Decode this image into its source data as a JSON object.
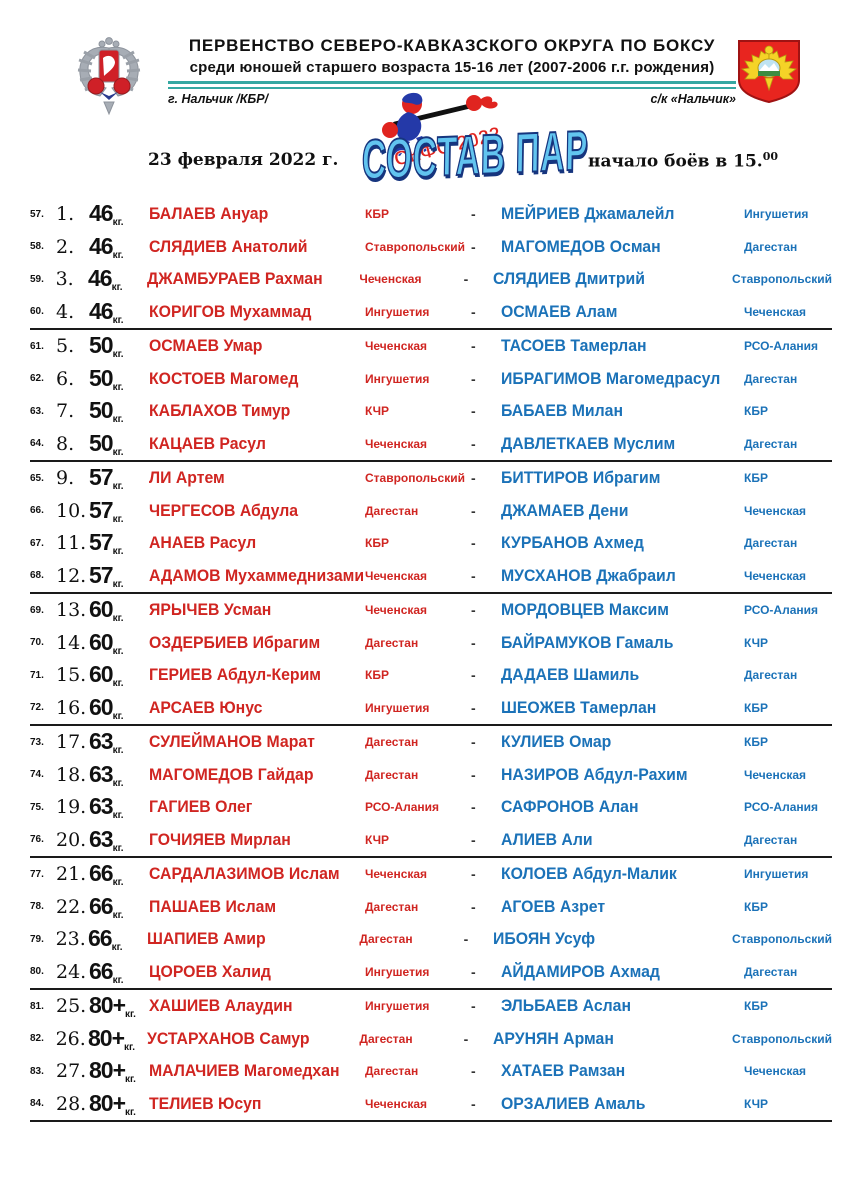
{
  "header": {
    "title": "ПЕРВЕНСТВО СЕВЕРО-КАВКАЗСКОГО ОКРУГА ПО БОКСУ",
    "subtitle": "среди юношей старшего возраста 15-16 лет (2007-2006 г.г. рождения)",
    "location_left": "г. Нальчик /КБР/",
    "location_right": "с/к «Нальчик»",
    "logo_text": "СКФО 2022"
  },
  "infobar": {
    "date": "23 февраля 2022 г.",
    "main_title": "СОСТАВ ПАР",
    "start_time": "начало боёв в 15.",
    "start_time_sup": "00"
  },
  "colors": {
    "red": "#d02521",
    "blue": "#1b72b8",
    "teal": "#35a8a2",
    "title-fill": "#62c4ef",
    "title-outline": "#16357e"
  },
  "table": {
    "weight_unit": "кг.",
    "dash": "-",
    "rows": [
      {
        "seq": "57.",
        "num": "1.",
        "weight": "46",
        "red_name": "БАЛАЕВ Ануар",
        "red_region": "КБР",
        "blue_name": "МЕЙРИЕВ Джамалейл",
        "blue_region": "Ингушетия",
        "group_end": false
      },
      {
        "seq": "58.",
        "num": "2.",
        "weight": "46",
        "red_name": "СЛЯДИЕВ Анатолий",
        "red_region": "Ставропольский",
        "blue_name": "МАГОМЕДОВ Осман",
        "blue_region": "Дагестан",
        "group_end": false
      },
      {
        "seq": "59.",
        "num": "3.",
        "weight": "46",
        "red_name": "ДЖАМБУРАЕВ Рахман",
        "red_region": "Чеченская",
        "blue_name": "СЛЯДИЕВ Дмитрий",
        "blue_region": "Ставропольский",
        "group_end": false
      },
      {
        "seq": "60.",
        "num": "4.",
        "weight": "46",
        "red_name": "КОРИГОВ Мухаммад",
        "red_region": "Ингушетия",
        "blue_name": "ОСМАЕВ Алам",
        "blue_region": "Чеченская",
        "group_end": true
      },
      {
        "seq": "61.",
        "num": "5.",
        "weight": "50",
        "red_name": "ОСМАЕВ Умар",
        "red_region": "Чеченская",
        "blue_name": "ТАСОЕВ Тамерлан",
        "blue_region": "РСО-Алания",
        "group_end": false
      },
      {
        "seq": "62.",
        "num": "6.",
        "weight": "50",
        "red_name": "КОСТОЕВ Магомед",
        "red_region": "Ингушетия",
        "blue_name": "ИБРАГИМОВ Магомедрасул",
        "blue_region": "Дагестан",
        "group_end": false
      },
      {
        "seq": "63.",
        "num": "7.",
        "weight": "50",
        "red_name": "КАБЛАХОВ Тимур",
        "red_region": "КЧР",
        "blue_name": "БАБАЕВ Милан",
        "blue_region": "КБР",
        "group_end": false
      },
      {
        "seq": "64.",
        "num": "8.",
        "weight": "50",
        "red_name": "КАЦАЕВ Расул",
        "red_region": "Чеченская",
        "blue_name": "ДАВЛЕТКАЕВ Муслим",
        "blue_region": "Дагестан",
        "group_end": true
      },
      {
        "seq": "65.",
        "num": "9.",
        "weight": "57",
        "red_name": "ЛИ Артем",
        "red_region": "Ставропольский",
        "blue_name": "БИТТИРОВ Ибрагим",
        "blue_region": "КБР",
        "group_end": false
      },
      {
        "seq": "66.",
        "num": "10.",
        "weight": "57",
        "red_name": "ЧЕРГЕСОВ Абдула",
        "red_region": "Дагестан",
        "blue_name": "ДЖАМАЕВ Дени",
        "blue_region": "Чеченская",
        "group_end": false
      },
      {
        "seq": "67.",
        "num": "11.",
        "weight": "57",
        "red_name": "АНАЕВ Расул",
        "red_region": "КБР",
        "blue_name": "КУРБАНОВ Ахмед",
        "blue_region": "Дагестан",
        "group_end": false
      },
      {
        "seq": "68.",
        "num": "12.",
        "weight": "57",
        "red_name": "АДАМОВ Мухаммеднизами",
        "red_region": "Чеченская",
        "blue_name": "МУСХАНОВ Джабраил",
        "blue_region": "Чеченская",
        "group_end": true
      },
      {
        "seq": "69.",
        "num": "13.",
        "weight": "60",
        "red_name": "ЯРЫЧЕВ Усман",
        "red_region": "Чеченская",
        "blue_name": "МОРДОВЦЕВ Максим",
        "blue_region": "РСО-Алания",
        "group_end": false
      },
      {
        "seq": "70.",
        "num": "14.",
        "weight": "60",
        "red_name": "ОЗДЕРБИЕВ Ибрагим",
        "red_region": "Дагестан",
        "blue_name": "БАЙРАМУКОВ Гамаль",
        "blue_region": "КЧР",
        "group_end": false
      },
      {
        "seq": "71.",
        "num": "15.",
        "weight": "60",
        "red_name": "ГЕРИЕВ Абдул-Керим",
        "red_region": "КБР",
        "blue_name": "ДАДАЕВ Шамиль",
        "blue_region": "Дагестан",
        "group_end": false
      },
      {
        "seq": "72.",
        "num": "16.",
        "weight": "60",
        "red_name": "АРСАЕВ Юнус",
        "red_region": "Ингушетия",
        "blue_name": "ШЕОЖЕВ Тамерлан",
        "blue_region": "КБР",
        "group_end": true
      },
      {
        "seq": "73.",
        "num": "17.",
        "weight": "63",
        "red_name": "СУЛЕЙМАНОВ Марат",
        "red_region": "Дагестан",
        "blue_name": "КУЛИЕВ Омар",
        "blue_region": "КБР",
        "group_end": false
      },
      {
        "seq": "74.",
        "num": "18.",
        "weight": "63",
        "red_name": "МАГОМЕДОВ Гайдар",
        "red_region": "Дагестан",
        "blue_name": "НАЗИРОВ Абдул-Рахим",
        "blue_region": "Чеченская",
        "group_end": false
      },
      {
        "seq": "75.",
        "num": "19.",
        "weight": "63",
        "red_name": "ГАГИЕВ Олег",
        "red_region": "РСО-Алания",
        "blue_name": "САФРОНОВ Алан",
        "blue_region": "РСО-Алания",
        "group_end": false
      },
      {
        "seq": "76.",
        "num": "20.",
        "weight": "63",
        "red_name": "ГОЧИЯЕВ Мирлан",
        "red_region": "КЧР",
        "blue_name": "АЛИЕВ Али",
        "blue_region": "Дагестан",
        "group_end": true
      },
      {
        "seq": "77.",
        "num": "21.",
        "weight": "66",
        "red_name": "САРДАЛАЗИМОВ Ислам",
        "red_region": "Чеченская",
        "blue_name": "КОЛОЕВ Абдул-Малик",
        "blue_region": "Ингушетия",
        "group_end": false
      },
      {
        "seq": "78.",
        "num": "22.",
        "weight": "66",
        "red_name": "ПАШАЕВ Ислам",
        "red_region": "Дагестан",
        "blue_name": "АГОЕВ Азрет",
        "blue_region": "КБР",
        "group_end": false
      },
      {
        "seq": "79.",
        "num": "23.",
        "weight": "66",
        "red_name": "ШАПИЕВ Амир",
        "red_region": "Дагестан",
        "blue_name": "ИБОЯН Усуф",
        "blue_region": "Ставропольский",
        "group_end": false
      },
      {
        "seq": "80.",
        "num": "24.",
        "weight": "66",
        "red_name": "ЦОРОЕВ Халид",
        "red_region": "Ингушетия",
        "blue_name": "АЙДАМИРОВ Ахмад",
        "blue_region": "Дагестан",
        "group_end": true
      },
      {
        "seq": "81.",
        "num": "25.",
        "weight": "80+",
        "red_name": "ХАШИЕВ Алаудин",
        "red_region": "Ингушетия",
        "blue_name": "ЭЛЬБАЕВ Аслан",
        "blue_region": "КБР",
        "group_end": false
      },
      {
        "seq": "82.",
        "num": "26.",
        "weight": "80+",
        "red_name": "УСТАРХАНОВ Самур",
        "red_region": "Дагестан",
        "blue_name": "АРУНЯН Арман",
        "blue_region": "Ставропольский",
        "group_end": false
      },
      {
        "seq": "83.",
        "num": "27.",
        "weight": "80+",
        "red_name": "МАЛАЧИЕВ Магомедхан",
        "red_region": "Дагестан",
        "blue_name": "ХАТАЕВ Рамзан",
        "blue_region": "Чеченская",
        "group_end": false
      },
      {
        "seq": "84.",
        "num": "28.",
        "weight": "80+",
        "red_name": "ТЕЛИЕВ Юсуп",
        "red_region": "Чеченская",
        "blue_name": "ОРЗАЛИЕВ Амаль",
        "blue_region": "КЧР",
        "group_end": true
      }
    ]
  }
}
